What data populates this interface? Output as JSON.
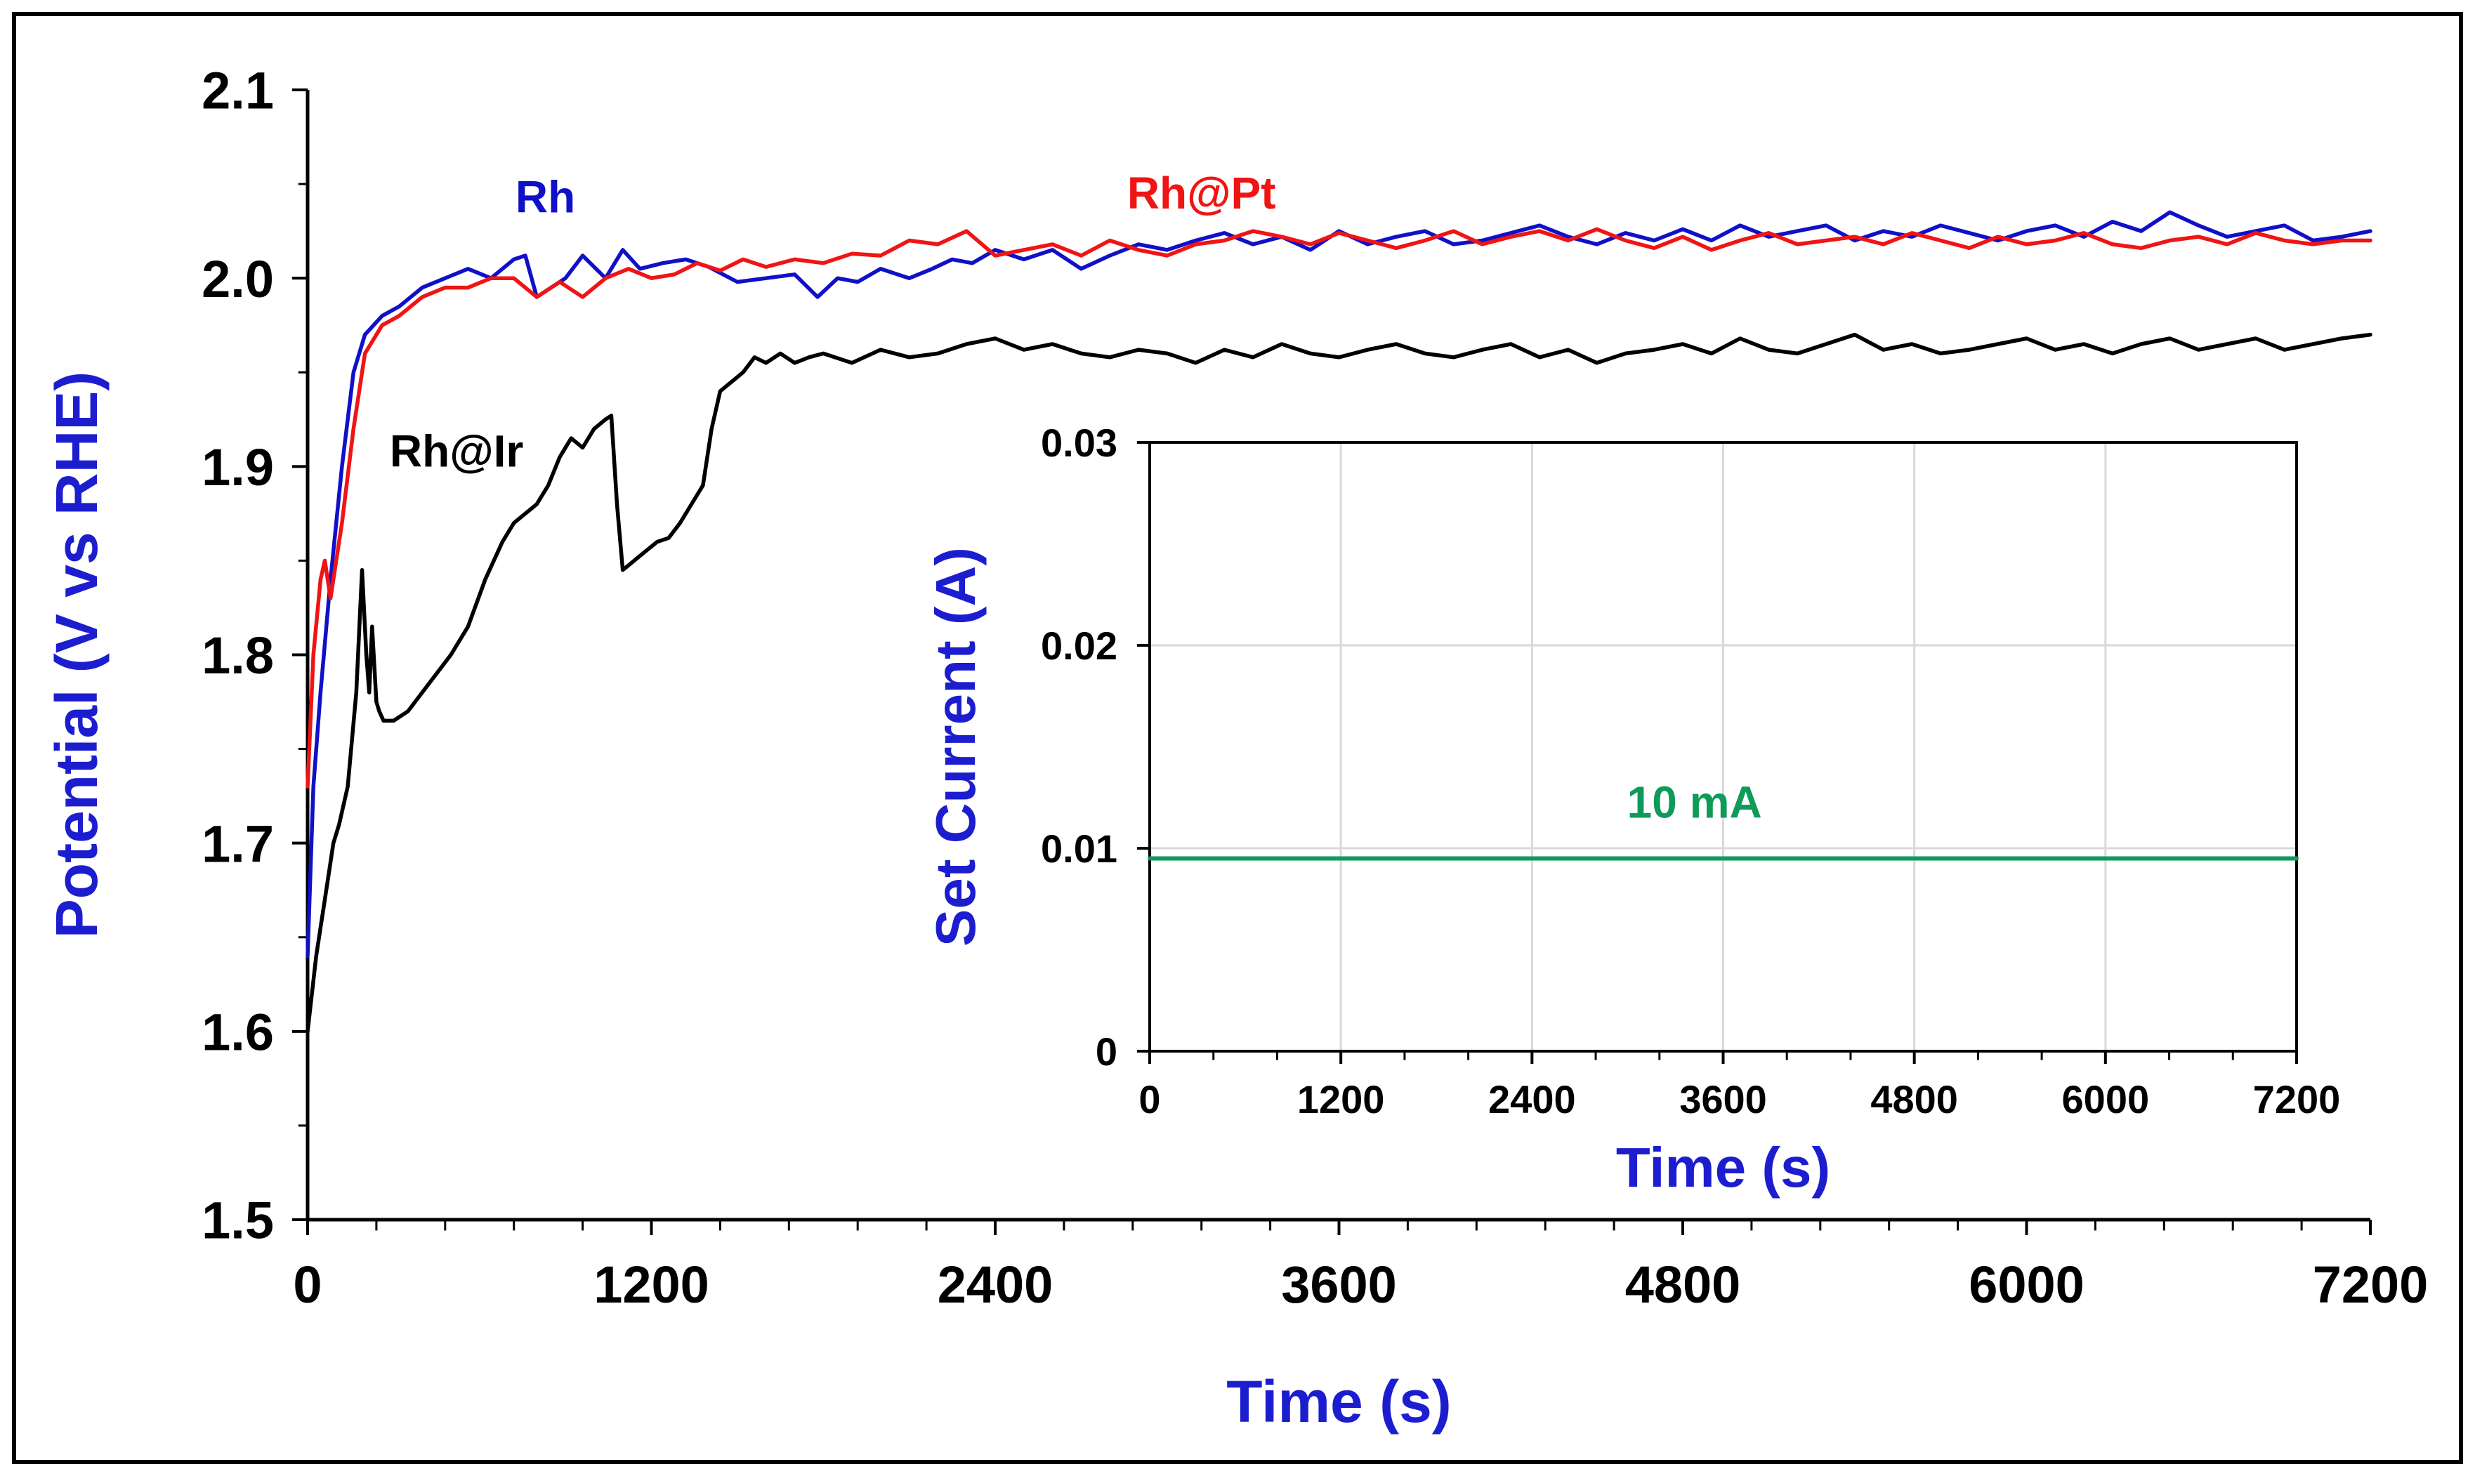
{
  "chart_data": [
    {
      "id": "main",
      "type": "line",
      "title": "",
      "xlabel": "Time (s)",
      "ylabel": "Potential (V vs RHE)",
      "xlim": [
        0,
        7200
      ],
      "ylim": [
        1.5,
        2.1
      ],
      "x_ticks": [
        0,
        1200,
        2400,
        3600,
        4800,
        6000,
        7200
      ],
      "x_tick_labels": [
        "0",
        "1200",
        "2400",
        "3600",
        "4800",
        "6000",
        "7200"
      ],
      "x_minor_step": 240,
      "y_ticks": [
        1.5,
        1.6,
        1.7,
        1.8,
        1.9,
        2.0,
        2.1
      ],
      "y_tick_labels": [
        "1.5",
        "1.6",
        "1.7",
        "1.8",
        "1.9",
        "2.0",
        "2.1"
      ],
      "y_minor_step": 0.05,
      "grid": false,
      "series": [
        {
          "name": "Rh",
          "color": "#1010c8",
          "label_at": [
            830,
            2.035
          ],
          "x": [
            0,
            20,
            45,
            80,
            120,
            160,
            200,
            260,
            320,
            400,
            480,
            560,
            640,
            720,
            760,
            800,
            850,
            900,
            960,
            1040,
            1100,
            1160,
            1240,
            1320,
            1400,
            1500,
            1600,
            1700,
            1780,
            1850,
            1920,
            2000,
            2100,
            2180,
            2250,
            2320,
            2400,
            2500,
            2600,
            2700,
            2800,
            2900,
            3000,
            3100,
            3200,
            3300,
            3400,
            3500,
            3600,
            3700,
            3800,
            3900,
            4000,
            4100,
            4200,
            4300,
            4400,
            4500,
            4600,
            4700,
            4800,
            4900,
            5000,
            5100,
            5200,
            5300,
            5400,
            5500,
            5600,
            5700,
            5800,
            5900,
            6000,
            6100,
            6200,
            6300,
            6400,
            6500,
            6600,
            6700,
            6800,
            6900,
            7000,
            7100,
            7200
          ],
          "y": [
            1.64,
            1.73,
            1.78,
            1.84,
            1.9,
            1.95,
            1.97,
            1.98,
            1.985,
            1.995,
            2.0,
            2.005,
            2.0,
            2.01,
            2.012,
            1.99,
            1.995,
            2.0,
            2.012,
            2.0,
            2.015,
            2.005,
            2.008,
            2.01,
            2.006,
            1.998,
            2.0,
            2.002,
            1.99,
            2.0,
            1.998,
            2.005,
            2.0,
            2.005,
            2.01,
            2.008,
            2.015,
            2.01,
            2.015,
            2.005,
            2.012,
            2.018,
            2.015,
            2.02,
            2.024,
            2.018,
            2.022,
            2.015,
            2.025,
            2.018,
            2.022,
            2.025,
            2.018,
            2.02,
            2.024,
            2.028,
            2.022,
            2.018,
            2.024,
            2.02,
            2.026,
            2.02,
            2.028,
            2.022,
            2.025,
            2.028,
            2.02,
            2.025,
            2.022,
            2.028,
            2.024,
            2.02,
            2.025,
            2.028,
            2.022,
            2.03,
            2.025,
            2.035,
            2.028,
            2.022,
            2.025,
            2.028,
            2.02,
            2.022,
            2.025
          ]
        },
        {
          "name": "Rh@Pt",
          "color": "#f01414",
          "label_at": [
            3120,
            2.037
          ],
          "x": [
            0,
            20,
            45,
            60,
            80,
            120,
            160,
            200,
            260,
            320,
            400,
            480,
            560,
            640,
            720,
            800,
            880,
            960,
            1040,
            1120,
            1200,
            1280,
            1360,
            1440,
            1520,
            1600,
            1700,
            1800,
            1900,
            2000,
            2100,
            2200,
            2300,
            2400,
            2500,
            2600,
            2700,
            2800,
            2900,
            3000,
            3100,
            3200,
            3300,
            3400,
            3500,
            3600,
            3700,
            3800,
            3900,
            4000,
            4100,
            4200,
            4300,
            4400,
            4500,
            4600,
            4700,
            4800,
            4900,
            5000,
            5100,
            5200,
            5300,
            5400,
            5500,
            5600,
            5700,
            5800,
            5900,
            6000,
            6100,
            6200,
            6300,
            6400,
            6500,
            6600,
            6700,
            6800,
            6900,
            7000,
            7100,
            7200
          ],
          "y": [
            1.73,
            1.8,
            1.84,
            1.85,
            1.83,
            1.87,
            1.92,
            1.96,
            1.975,
            1.98,
            1.99,
            1.995,
            1.995,
            2.0,
            2.0,
            1.99,
            1.998,
            1.99,
            2.0,
            2.005,
            2.0,
            2.002,
            2.008,
            2.004,
            2.01,
            2.006,
            2.01,
            2.008,
            2.013,
            2.012,
            2.02,
            2.018,
            2.025,
            2.012,
            2.015,
            2.018,
            2.012,
            2.02,
            2.015,
            2.012,
            2.018,
            2.02,
            2.025,
            2.022,
            2.018,
            2.024,
            2.02,
            2.016,
            2.02,
            2.025,
            2.018,
            2.022,
            2.025,
            2.02,
            2.026,
            2.02,
            2.016,
            2.022,
            2.015,
            2.02,
            2.024,
            2.018,
            2.02,
            2.022,
            2.018,
            2.024,
            2.02,
            2.016,
            2.022,
            2.018,
            2.02,
            2.024,
            2.018,
            2.016,
            2.02,
            2.022,
            2.018,
            2.024,
            2.02,
            2.018,
            2.02,
            2.02
          ]
        },
        {
          "name": "Rh@Ir",
          "color": "#000000",
          "label_at": [
            520,
            1.9
          ],
          "x": [
            0,
            15,
            30,
            50,
            70,
            90,
            110,
            140,
            170,
            190,
            205,
            215,
            225,
            240,
            250,
            265,
            300,
            350,
            400,
            450,
            500,
            560,
            620,
            680,
            720,
            760,
            800,
            840,
            880,
            920,
            960,
            1000,
            1040,
            1060,
            1080,
            1100,
            1140,
            1180,
            1220,
            1260,
            1300,
            1340,
            1380,
            1410,
            1440,
            1480,
            1520,
            1560,
            1600,
            1650,
            1700,
            1750,
            1800,
            1900,
            2000,
            2100,
            2200,
            2300,
            2400,
            2500,
            2600,
            2700,
            2800,
            2900,
            3000,
            3100,
            3200,
            3300,
            3400,
            3500,
            3600,
            3700,
            3800,
            3900,
            4000,
            4100,
            4200,
            4300,
            4400,
            4500,
            4600,
            4700,
            4800,
            4900,
            5000,
            5100,
            5200,
            5300,
            5400,
            5500,
            5600,
            5700,
            5800,
            5900,
            6000,
            6100,
            6200,
            6300,
            6400,
            6500,
            6600,
            6700,
            6800,
            6900,
            7000,
            7100,
            7200
          ],
          "y": [
            1.6,
            1.62,
            1.64,
            1.66,
            1.68,
            1.7,
            1.71,
            1.73,
            1.78,
            1.845,
            1.8,
            1.78,
            1.815,
            1.775,
            1.77,
            1.765,
            1.765,
            1.77,
            1.78,
            1.79,
            1.8,
            1.815,
            1.84,
            1.86,
            1.87,
            1.875,
            1.88,
            1.89,
            1.905,
            1.915,
            1.91,
            1.92,
            1.925,
            1.927,
            1.88,
            1.845,
            1.85,
            1.855,
            1.86,
            1.862,
            1.87,
            1.88,
            1.89,
            1.92,
            1.94,
            1.945,
            1.95,
            1.958,
            1.955,
            1.96,
            1.955,
            1.958,
            1.96,
            1.955,
            1.962,
            1.958,
            1.96,
            1.965,
            1.968,
            1.962,
            1.965,
            1.96,
            1.958,
            1.962,
            1.96,
            1.955,
            1.962,
            1.958,
            1.965,
            1.96,
            1.958,
            1.962,
            1.965,
            1.96,
            1.958,
            1.962,
            1.965,
            1.958,
            1.962,
            1.955,
            1.96,
            1.962,
            1.965,
            1.96,
            1.968,
            1.962,
            1.96,
            1.965,
            1.97,
            1.962,
            1.965,
            1.96,
            1.962,
            1.965,
            1.968,
            1.962,
            1.965,
            1.96,
            1.965,
            1.968,
            1.962,
            1.965,
            1.968,
            1.962,
            1.965,
            1.968,
            1.97
          ]
        }
      ]
    },
    {
      "id": "inset",
      "type": "line",
      "title": "",
      "xlabel": "Time (s)",
      "ylabel": "Set Current (A)",
      "xlim": [
        0,
        7200
      ],
      "ylim": [
        0,
        0.03
      ],
      "x_ticks": [
        0,
        1200,
        2400,
        3600,
        4800,
        6000,
        7200
      ],
      "x_tick_labels": [
        "0",
        "1200",
        "2400",
        "3600",
        "4800",
        "6000",
        "7200"
      ],
      "x_minor_step": 400,
      "y_ticks": [
        0,
        0.01,
        0.02,
        0.03
      ],
      "y_tick_labels": [
        "0",
        "0.01",
        "0.02",
        "0.03"
      ],
      "grid": true,
      "annotation": {
        "text": "10 mA",
        "at": [
          3420,
          0.0115
        ],
        "color": "#0f9a5a"
      },
      "series": [
        {
          "name": "Set current",
          "color": "#0f9a5a",
          "x": [
            0,
            7200
          ],
          "y": [
            0.0095,
            0.0095
          ]
        }
      ]
    }
  ],
  "colors": {
    "axis_title": "#1d1dd0",
    "tick_text": "#000000",
    "frame": "#000000",
    "grid": "#d9d9d9"
  }
}
